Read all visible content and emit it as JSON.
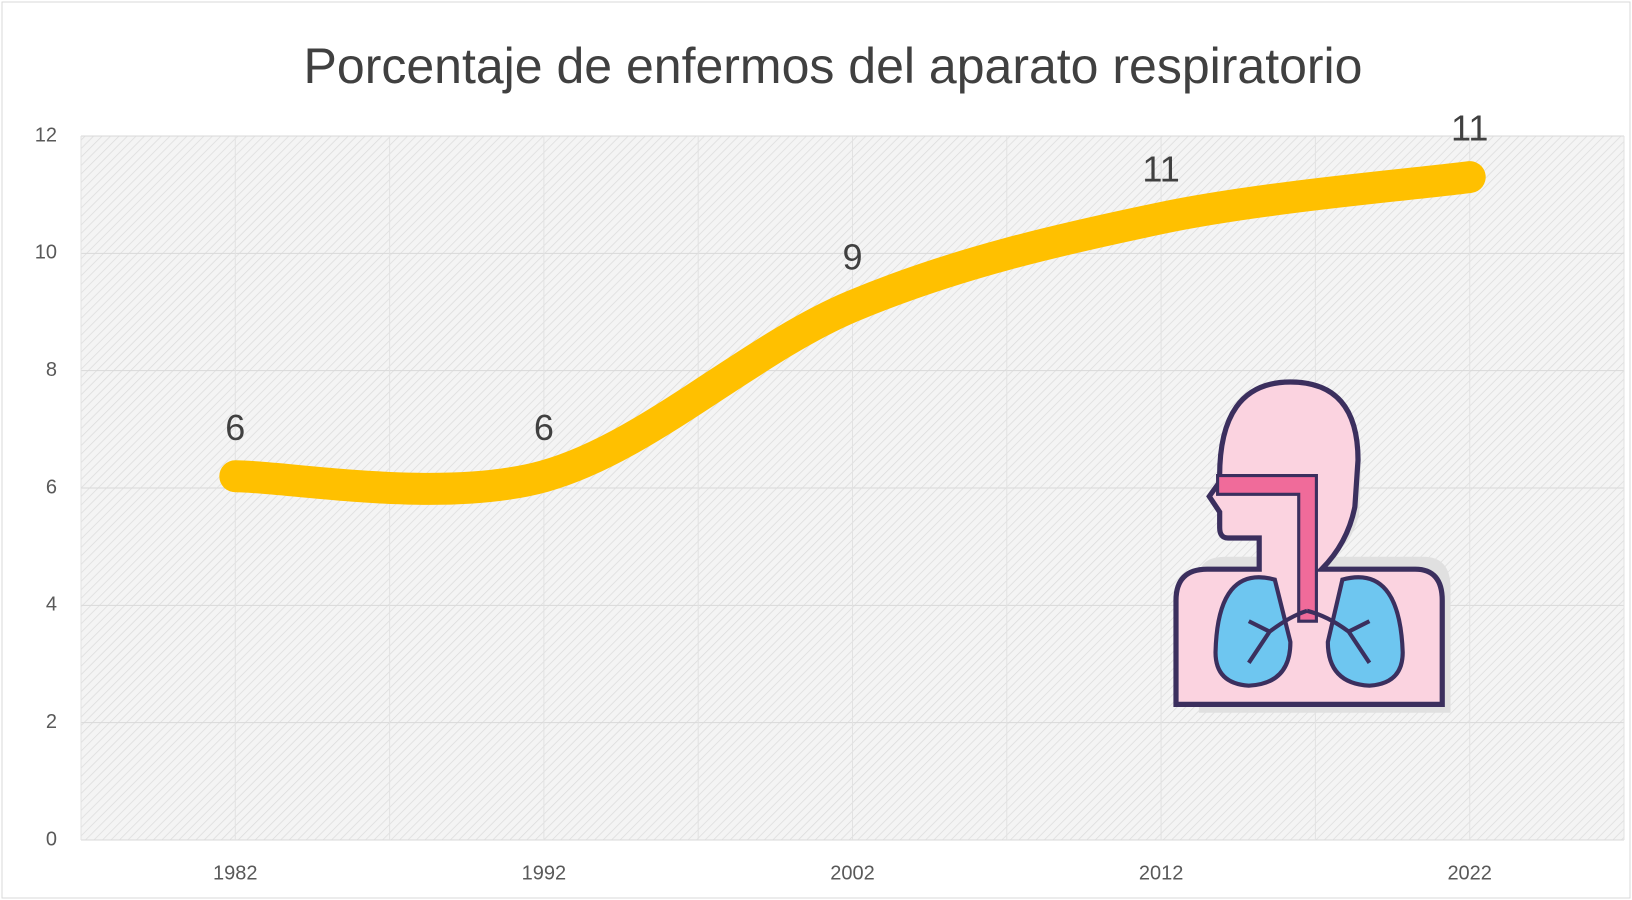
{
  "chart_data": {
    "type": "line",
    "title": "Porcentaje de enfermos del aparato respiratorio",
    "categories": [
      "1982",
      "1992",
      "2002",
      "2012",
      "2022"
    ],
    "values": [
      6.2,
      6.2,
      9.1,
      10.6,
      11.3
    ],
    "value_labels": [
      "6",
      "6",
      "9",
      "11",
      "11"
    ],
    "color": "#ffc000",
    "ylim": [
      0,
      12
    ],
    "yticks": [
      0,
      2,
      4,
      6,
      8,
      10,
      12
    ],
    "grid": true,
    "smooth": true
  }
}
